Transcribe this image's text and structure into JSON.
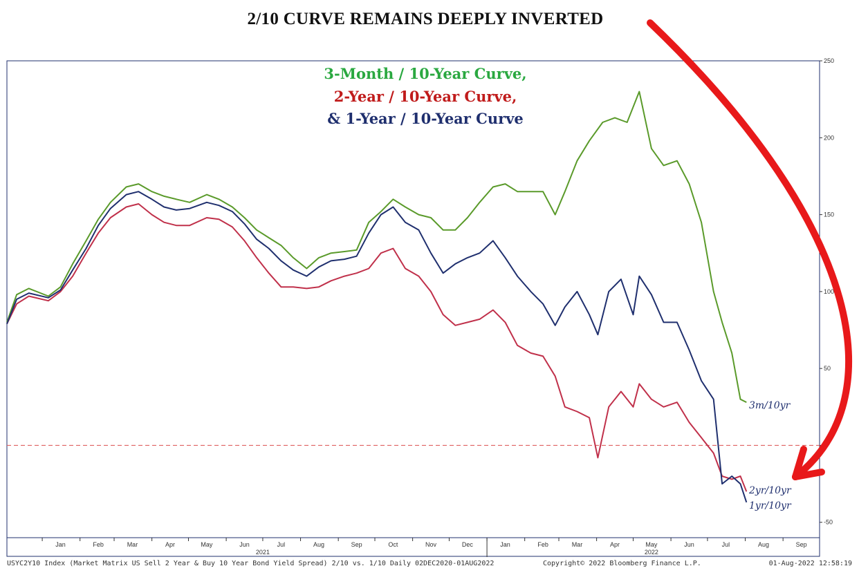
{
  "headline": "2/10 CURVE REMAINS DEEPLY INVERTED",
  "colors": {
    "green": "#5a9a2a",
    "red": "#c0304a",
    "navy": "#1f2f6e",
    "arrow": "#e8191a",
    "zero_line": "#e06060",
    "title_green": "#2aa840",
    "title_red": "#c01b1b",
    "title_navy": "#1f2f6e"
  },
  "chart_data": {
    "type": "line",
    "title_lines": [
      "3-Month / 10-Year Curve,",
      "2-Year / 10-Year Curve,",
      "& 1-Year / 10-Year Curve"
    ],
    "ylim": [
      -60,
      250
    ],
    "y_ticks": [
      -50,
      0,
      50,
      100,
      150,
      200,
      250
    ],
    "y_tick_labels": [
      "-50",
      "0",
      "50",
      "100",
      "150",
      "200",
      "250"
    ],
    "x_range": [
      "2020-12-02",
      "2022-09-30"
    ],
    "x_ticks": [
      "2021-01-15",
      "2021-02-15",
      "2021-03-15",
      "2021-04-15",
      "2021-05-15",
      "2021-06-15",
      "2021-07-15",
      "2021-08-15",
      "2021-09-15",
      "2021-10-15",
      "2021-11-15",
      "2021-12-15",
      "2022-01-15",
      "2022-02-15",
      "2022-03-15",
      "2022-04-15",
      "2022-05-15",
      "2022-06-15",
      "2022-07-15",
      "2022-08-15",
      "2022-09-15"
    ],
    "x_tick_labels": [
      "Jan",
      "Feb",
      "Mar",
      "Apr",
      "May",
      "Jun",
      "Jul",
      "Aug",
      "Sep",
      "Oct",
      "Nov",
      "Dec",
      "Jan",
      "Feb",
      "Mar",
      "Apr",
      "May",
      "Jun",
      "Jul",
      "Aug",
      "Sep"
    ],
    "year_labels": [
      {
        "text": "2021",
        "x": "2021-06-30"
      },
      {
        "text": "2022",
        "x": "2022-05-15"
      }
    ],
    "reference_line": {
      "y": 0,
      "style": "dashed"
    },
    "series": [
      {
        "name": "3m/10yr",
        "color": "#5a9a2a",
        "points": [
          [
            "2020-12-02",
            80
          ],
          [
            "2020-12-10",
            98
          ],
          [
            "2020-12-20",
            102
          ],
          [
            "2021-01-05",
            97
          ],
          [
            "2021-01-15",
            103
          ],
          [
            "2021-01-25",
            118
          ],
          [
            "2021-02-05",
            133
          ],
          [
            "2021-02-15",
            147
          ],
          [
            "2021-02-25",
            158
          ],
          [
            "2021-03-10",
            168
          ],
          [
            "2021-03-20",
            170
          ],
          [
            "2021-03-31",
            165
          ],
          [
            "2021-04-10",
            162
          ],
          [
            "2021-04-20",
            160
          ],
          [
            "2021-05-01",
            158
          ],
          [
            "2021-05-15",
            163
          ],
          [
            "2021-05-25",
            160
          ],
          [
            "2021-06-05",
            155
          ],
          [
            "2021-06-15",
            148
          ],
          [
            "2021-06-25",
            140
          ],
          [
            "2021-07-05",
            135
          ],
          [
            "2021-07-15",
            130
          ],
          [
            "2021-07-25",
            122
          ],
          [
            "2021-08-05",
            115
          ],
          [
            "2021-08-15",
            122
          ],
          [
            "2021-08-25",
            125
          ],
          [
            "2021-09-05",
            126
          ],
          [
            "2021-09-15",
            127
          ],
          [
            "2021-09-25",
            145
          ],
          [
            "2021-10-05",
            152
          ],
          [
            "2021-10-15",
            160
          ],
          [
            "2021-10-25",
            155
          ],
          [
            "2021-11-05",
            150
          ],
          [
            "2021-11-15",
            148
          ],
          [
            "2021-11-25",
            140
          ],
          [
            "2021-12-05",
            140
          ],
          [
            "2021-12-15",
            148
          ],
          [
            "2021-12-25",
            158
          ],
          [
            "2022-01-05",
            168
          ],
          [
            "2022-01-15",
            170
          ],
          [
            "2022-01-25",
            165
          ],
          [
            "2022-02-05",
            165
          ],
          [
            "2022-02-15",
            165
          ],
          [
            "2022-02-25",
            150
          ],
          [
            "2022-03-05",
            165
          ],
          [
            "2022-03-15",
            185
          ],
          [
            "2022-03-25",
            198
          ],
          [
            "2022-04-05",
            210
          ],
          [
            "2022-04-15",
            213
          ],
          [
            "2022-04-25",
            210
          ],
          [
            "2022-05-05",
            230
          ],
          [
            "2022-05-15",
            193
          ],
          [
            "2022-05-25",
            182
          ],
          [
            "2022-06-05",
            185
          ],
          [
            "2022-06-15",
            170
          ],
          [
            "2022-06-25",
            145
          ],
          [
            "2022-07-05",
            100
          ],
          [
            "2022-07-12",
            80
          ],
          [
            "2022-07-20",
            60
          ],
          [
            "2022-07-27",
            30
          ],
          [
            "2022-08-01",
            28
          ]
        ]
      },
      {
        "name": "2yr/10yr",
        "color": "#c0304a",
        "points": [
          [
            "2020-12-02",
            79
          ],
          [
            "2020-12-10",
            92
          ],
          [
            "2020-12-20",
            97
          ],
          [
            "2021-01-05",
            94
          ],
          [
            "2021-01-15",
            100
          ],
          [
            "2021-01-25",
            110
          ],
          [
            "2021-02-05",
            125
          ],
          [
            "2021-02-15",
            138
          ],
          [
            "2021-02-25",
            148
          ],
          [
            "2021-03-10",
            155
          ],
          [
            "2021-03-20",
            157
          ],
          [
            "2021-03-31",
            150
          ],
          [
            "2021-04-10",
            145
          ],
          [
            "2021-04-20",
            143
          ],
          [
            "2021-05-01",
            143
          ],
          [
            "2021-05-15",
            148
          ],
          [
            "2021-05-25",
            147
          ],
          [
            "2021-06-05",
            142
          ],
          [
            "2021-06-15",
            133
          ],
          [
            "2021-06-25",
            122
          ],
          [
            "2021-07-05",
            112
          ],
          [
            "2021-07-15",
            103
          ],
          [
            "2021-07-25",
            103
          ],
          [
            "2021-08-05",
            102
          ],
          [
            "2021-08-15",
            103
          ],
          [
            "2021-08-25",
            107
          ],
          [
            "2021-09-05",
            110
          ],
          [
            "2021-09-15",
            112
          ],
          [
            "2021-09-25",
            115
          ],
          [
            "2021-10-05",
            125
          ],
          [
            "2021-10-15",
            128
          ],
          [
            "2021-10-25",
            115
          ],
          [
            "2021-11-05",
            110
          ],
          [
            "2021-11-15",
            100
          ],
          [
            "2021-11-25",
            85
          ],
          [
            "2021-12-05",
            78
          ],
          [
            "2021-12-15",
            80
          ],
          [
            "2021-12-25",
            82
          ],
          [
            "2022-01-05",
            88
          ],
          [
            "2022-01-15",
            80
          ],
          [
            "2022-01-25",
            65
          ],
          [
            "2022-02-05",
            60
          ],
          [
            "2022-02-15",
            58
          ],
          [
            "2022-02-25",
            45
          ],
          [
            "2022-03-05",
            25
          ],
          [
            "2022-03-15",
            22
          ],
          [
            "2022-03-25",
            18
          ],
          [
            "2022-04-01",
            -8
          ],
          [
            "2022-04-10",
            25
          ],
          [
            "2022-04-20",
            35
          ],
          [
            "2022-04-30",
            25
          ],
          [
            "2022-05-05",
            40
          ],
          [
            "2022-05-15",
            30
          ],
          [
            "2022-05-25",
            25
          ],
          [
            "2022-06-05",
            28
          ],
          [
            "2022-06-15",
            15
          ],
          [
            "2022-06-25",
            5
          ],
          [
            "2022-07-05",
            -5
          ],
          [
            "2022-07-12",
            -20
          ],
          [
            "2022-07-20",
            -22
          ],
          [
            "2022-07-27",
            -20
          ],
          [
            "2022-08-01",
            -30
          ]
        ]
      },
      {
        "name": "1yr/10yr",
        "color": "#1f2f6e",
        "points": [
          [
            "2020-12-02",
            79
          ],
          [
            "2020-12-10",
            95
          ],
          [
            "2020-12-20",
            99
          ],
          [
            "2021-01-05",
            96
          ],
          [
            "2021-01-15",
            101
          ],
          [
            "2021-01-25",
            114
          ],
          [
            "2021-02-05",
            128
          ],
          [
            "2021-02-15",
            143
          ],
          [
            "2021-02-25",
            154
          ],
          [
            "2021-03-10",
            163
          ],
          [
            "2021-03-20",
            165
          ],
          [
            "2021-03-31",
            160
          ],
          [
            "2021-04-10",
            155
          ],
          [
            "2021-04-20",
            153
          ],
          [
            "2021-05-01",
            154
          ],
          [
            "2021-05-15",
            158
          ],
          [
            "2021-05-25",
            156
          ],
          [
            "2021-06-05",
            152
          ],
          [
            "2021-06-15",
            144
          ],
          [
            "2021-06-25",
            134
          ],
          [
            "2021-07-05",
            128
          ],
          [
            "2021-07-15",
            120
          ],
          [
            "2021-07-25",
            114
          ],
          [
            "2021-08-05",
            110
          ],
          [
            "2021-08-15",
            116
          ],
          [
            "2021-08-25",
            120
          ],
          [
            "2021-09-05",
            121
          ],
          [
            "2021-09-15",
            123
          ],
          [
            "2021-09-25",
            138
          ],
          [
            "2021-10-05",
            150
          ],
          [
            "2021-10-15",
            155
          ],
          [
            "2021-10-25",
            145
          ],
          [
            "2021-11-05",
            140
          ],
          [
            "2021-11-15",
            125
          ],
          [
            "2021-11-25",
            112
          ],
          [
            "2021-12-05",
            118
          ],
          [
            "2021-12-15",
            122
          ],
          [
            "2021-12-25",
            125
          ],
          [
            "2022-01-05",
            133
          ],
          [
            "2022-01-15",
            122
          ],
          [
            "2022-01-25",
            110
          ],
          [
            "2022-02-05",
            100
          ],
          [
            "2022-02-15",
            92
          ],
          [
            "2022-02-25",
            78
          ],
          [
            "2022-03-05",
            90
          ],
          [
            "2022-03-15",
            100
          ],
          [
            "2022-03-25",
            85
          ],
          [
            "2022-04-01",
            72
          ],
          [
            "2022-04-10",
            100
          ],
          [
            "2022-04-20",
            108
          ],
          [
            "2022-04-30",
            85
          ],
          [
            "2022-05-05",
            110
          ],
          [
            "2022-05-15",
            98
          ],
          [
            "2022-05-25",
            80
          ],
          [
            "2022-06-05",
            80
          ],
          [
            "2022-06-15",
            62
          ],
          [
            "2022-06-25",
            42
          ],
          [
            "2022-07-05",
            30
          ],
          [
            "2022-07-12",
            -25
          ],
          [
            "2022-07-20",
            -20
          ],
          [
            "2022-07-27",
            -25
          ],
          [
            "2022-08-01",
            -37
          ]
        ]
      }
    ]
  },
  "series_labels": [
    "3m/10yr",
    "2yr/10yr",
    "1yr/10yr"
  ],
  "footer": {
    "left": "USYC2Y10 Index (Market Matrix US Sell 2 Year & Buy 10 Year Bond Yield Spread) 2/10 vs. 1/10  Daily 02DEC2020-01AUG2022",
    "center": "Copyright© 2022 Bloomberg Finance L.P.",
    "right": "01-Aug-2022 12:58:19"
  }
}
